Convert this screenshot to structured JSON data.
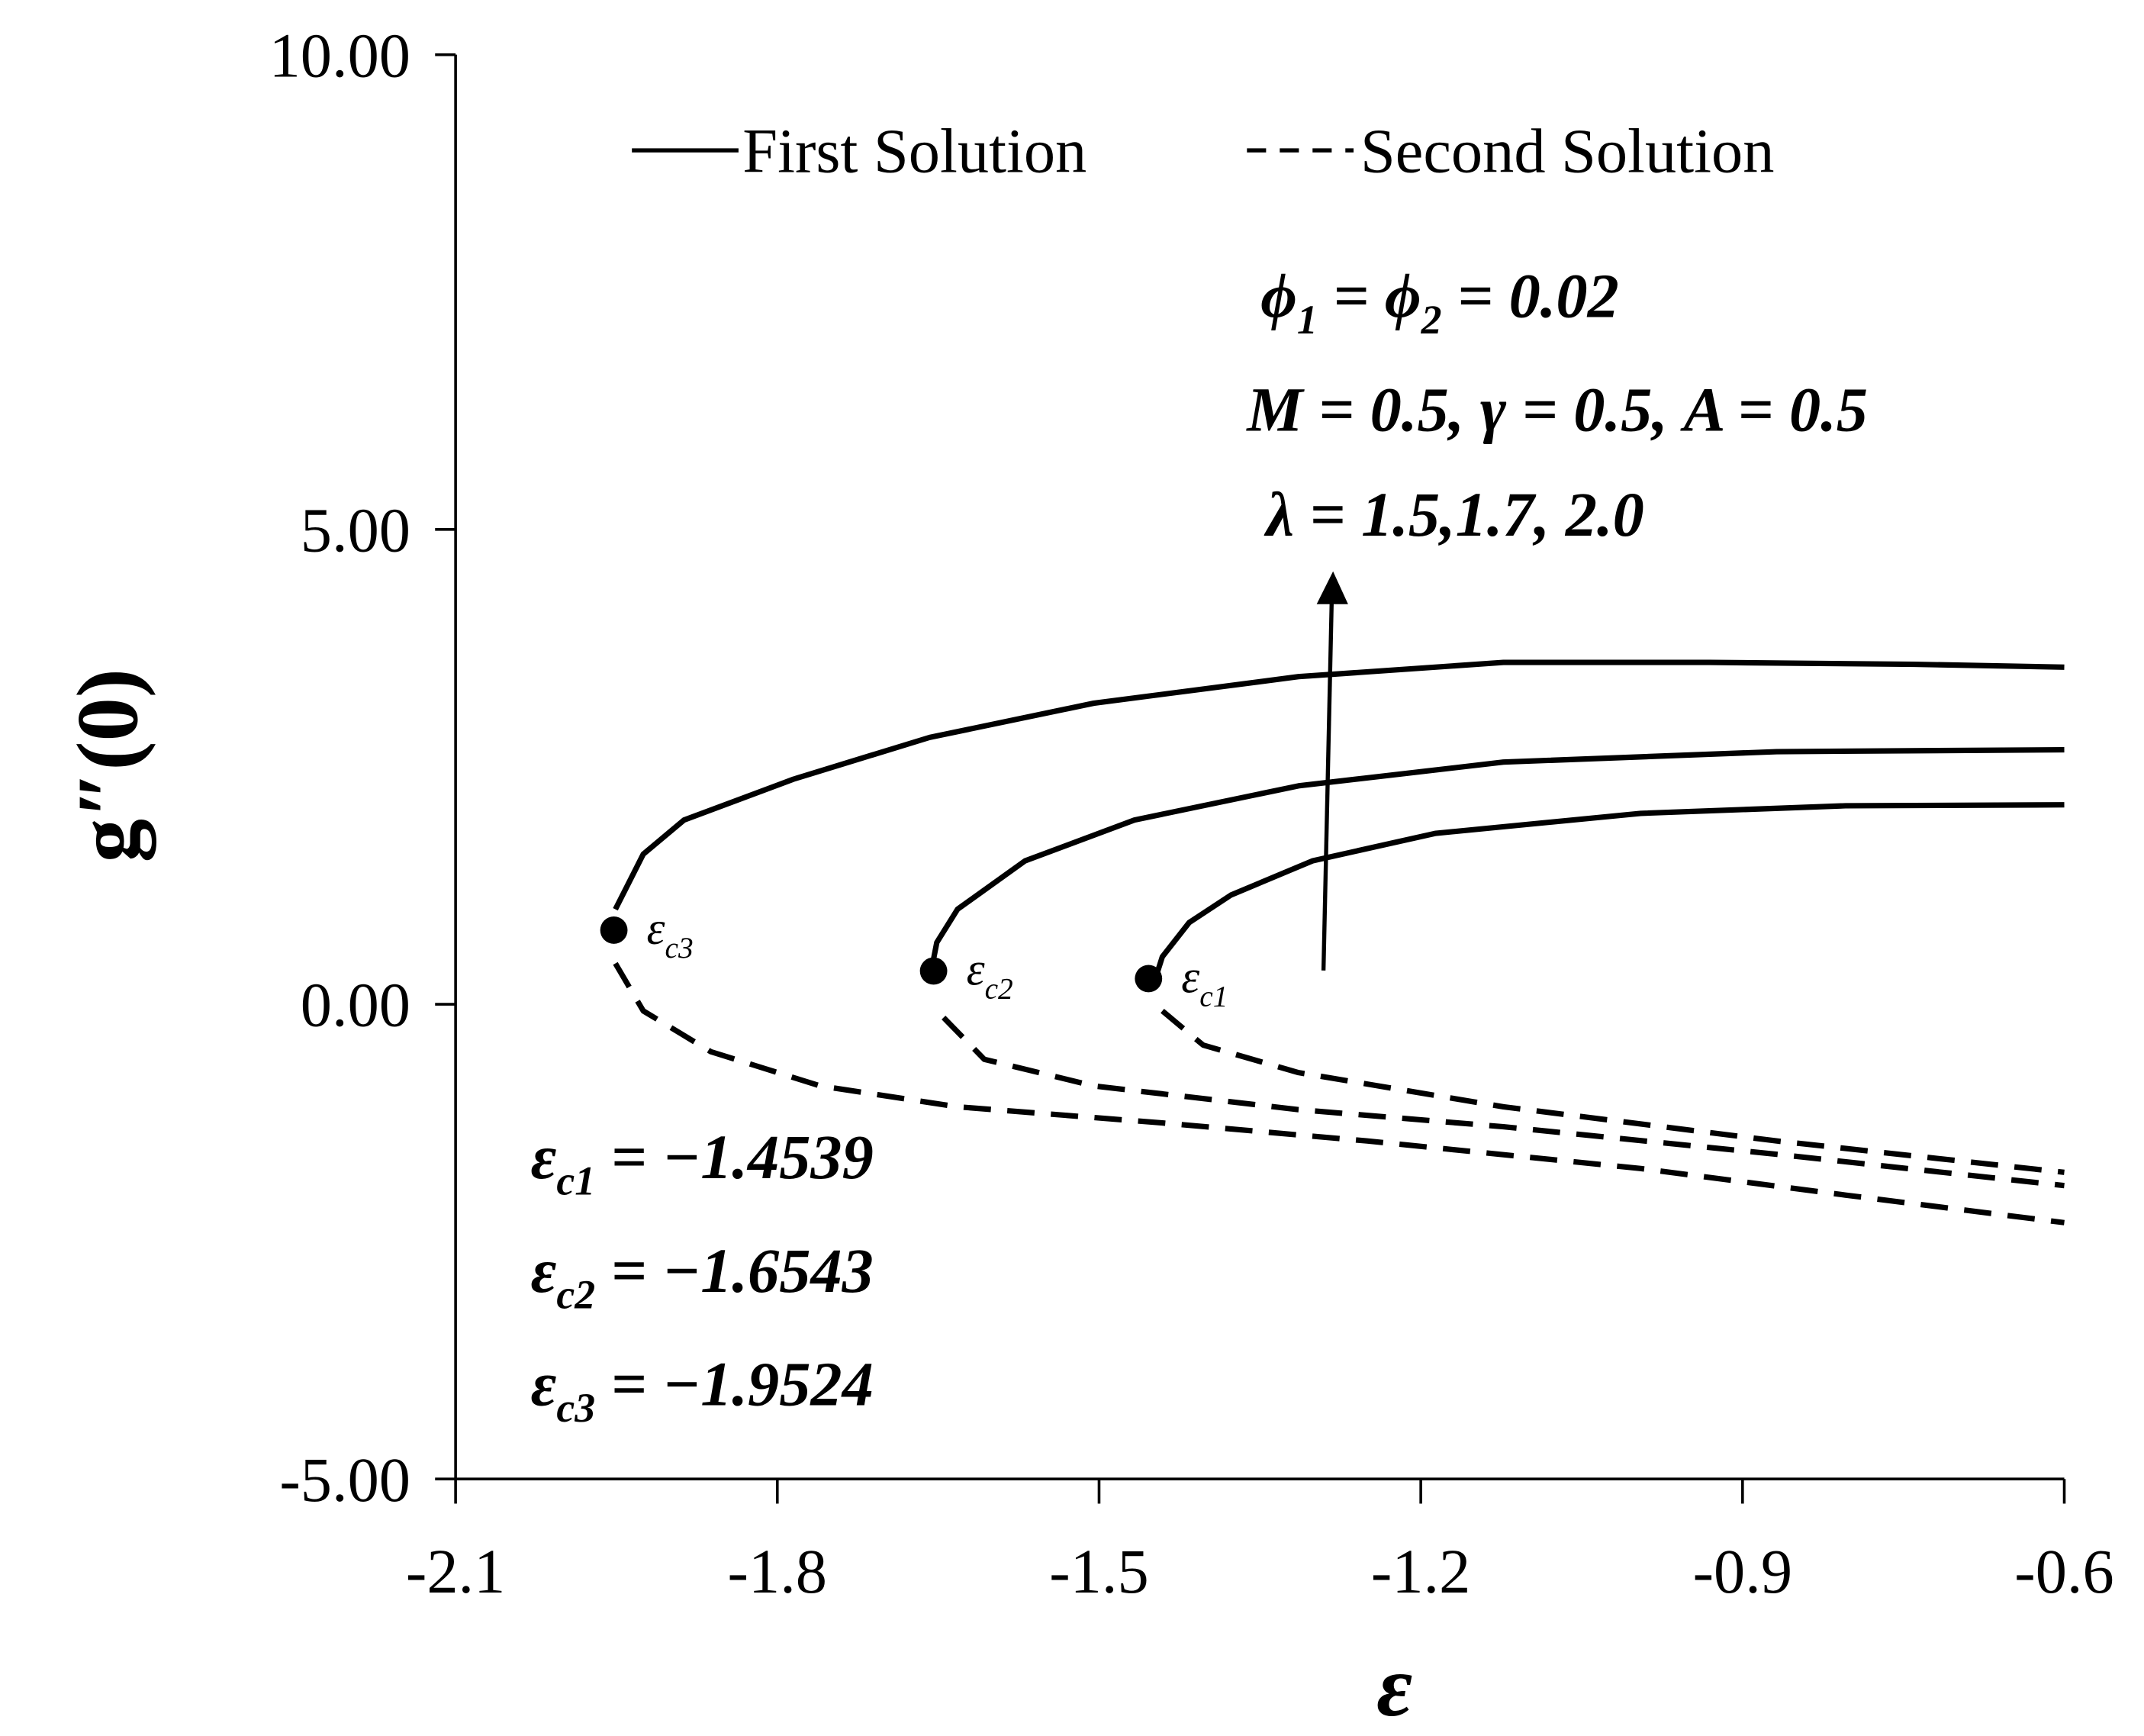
{
  "chart_data": {
    "type": "line",
    "xlabel": "ε",
    "ylabel": "g″(0)",
    "xlim": [
      -2.1,
      -0.6
    ],
    "xticks": [
      -2.1,
      -1.8,
      -1.5,
      -1.2,
      -0.9,
      -0.6
    ],
    "ylim": [
      -5,
      10
    ],
    "yticks": [
      {
        "value": -5,
        "label": "-5.00"
      },
      {
        "value": 0,
        "label": "0.00"
      },
      {
        "value": 5,
        "label": "5.00"
      },
      {
        "value": 10,
        "label": "10.00"
      }
    ],
    "series": [
      {
        "name": "First Solution",
        "color": "#000000",
        "dash": false,
        "curves": [
          {
            "x": [
              -1.4475,
              -1.441,
              -1.416,
              -1.377,
              -1.301,
              -1.186,
              -0.995,
              -0.804,
              -0.6
            ],
            "values": [
              0.27,
              0.5,
              0.86,
              1.15,
              1.51,
              1.8,
              2.01,
              2.09,
              2.1
            ]
          },
          {
            "x": [
              -1.6565,
              -1.6513,
              -1.632,
              -1.569,
              -1.467,
              -1.314,
              -1.123,
              -0.868,
              -0.6
            ],
            "values": [
              0.35,
              0.65,
              1.0,
              1.51,
              1.94,
              2.3,
              2.55,
              2.66,
              2.68
            ]
          },
          {
            "x": [
              -1.951,
              -1.925,
              -1.887,
              -1.785,
              -1.658,
              -1.505,
              -1.314,
              -1.123,
              -0.931,
              -0.74,
              -0.6
            ],
            "values": [
              1.0,
              1.58,
              1.94,
              2.37,
              2.81,
              3.17,
              3.45,
              3.6,
              3.6,
              3.58,
              3.55
            ]
          }
        ]
      },
      {
        "name": "Second Solution",
        "color": "#000000",
        "dash": true,
        "curves": [
          {
            "x": [
              -1.441,
              -1.403,
              -1.314,
              -1.123,
              -0.868,
              -0.6
            ],
            "values": [
              -0.07,
              -0.43,
              -0.72,
              -1.08,
              -1.44,
              -1.77
            ]
          },
          {
            "x": [
              -1.645,
              -1.607,
              -1.505,
              -1.314,
              -1.123,
              -0.868,
              -0.6
            ],
            "values": [
              -0.14,
              -0.58,
              -0.86,
              -1.11,
              -1.29,
              -1.58,
              -1.91
            ]
          },
          {
            "x": [
              -1.951,
              -1.925,
              -1.862,
              -1.76,
              -1.632,
              -1.441,
              -1.25,
              -0.995,
              -0.804,
              -0.6
            ],
            "values": [
              0.43,
              -0.07,
              -0.5,
              -0.86,
              -1.08,
              -1.25,
              -1.44,
              -1.73,
              -2.01,
              -2.3
            ]
          }
        ]
      }
    ],
    "critical_points": [
      {
        "x": -1.4539,
        "y": 0.27,
        "symbol": "ε",
        "sub": "c1"
      },
      {
        "x": -1.6543,
        "y": 0.35,
        "symbol": "ε",
        "sub": "c2"
      },
      {
        "x": -1.9524,
        "y": 0.78,
        "symbol": "ε",
        "sub": "c3"
      }
    ],
    "annotations": [
      [
        {
          "t": "ϕ"
        },
        {
          "t": "1",
          "sub": true
        },
        {
          "t": " = ϕ"
        },
        {
          "t": "2",
          "sub": true
        },
        {
          "t": " = 0.02"
        }
      ],
      [
        {
          "t": "M = 0.5, γ = 0.5, A = 0.5"
        }
      ],
      [
        {
          "t": "λ = 1.5,1.7, 2.0"
        }
      ],
      [
        {
          "t": "ε"
        },
        {
          "t": "c1",
          "sub": true
        },
        {
          "t": " = −1.4539"
        }
      ],
      [
        {
          "t": "ε"
        },
        {
          "t": "c2",
          "sub": true
        },
        {
          "t": " = −1.6543"
        }
      ],
      [
        {
          "t": "ε"
        },
        {
          "t": "c3",
          "sub": true
        },
        {
          "t": " = −1.9524"
        }
      ]
    ]
  }
}
